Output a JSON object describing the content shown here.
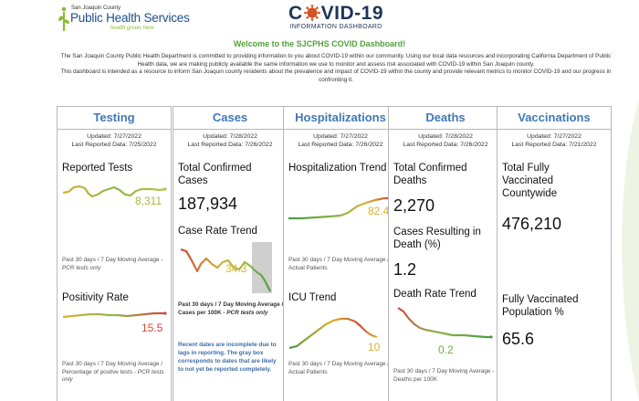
{
  "header": {
    "logo": {
      "county": "San Joaquin County",
      "name": "Public Health Services",
      "tagline": "health grows here"
    },
    "covid": {
      "title_left": "C",
      "title_mid": "VID-19",
      "subtitle": "INFORMATION DASHBOARD"
    }
  },
  "welcome": "Welcome to the SJCPHS COVID Dashboard!",
  "intro": {
    "p1": "The San Joaquin County Public Health Department is committed to providing information to you about COVID-19 within our community.  Using our local data resources and incorporating California Department of Public Health data, we are making publicly available the same information we use to monitor and assess risk associated with COVID-19 within San Joaquin county.",
    "p2": "This dashboard is intended as a resource to inform San Joaquin county residents about the prevalence and impact of COVID-19 within the county and provide relevant metrics to monitor COVID-19 and our progress in confronting it."
  },
  "panels": {
    "testing": {
      "title": "Testing",
      "updated": "Updated: 7/27/2022",
      "reported": "Last Reported Data: 7/25/2022",
      "m1_title": "Reported Tests",
      "m1_spark_value": "8,311",
      "m1_note_plain": "Past 30 days / 7 Day Moving Average - ",
      "m1_note_italic": "PCR tests only",
      "m2_title": "Positivity Rate",
      "m2_spark_value": "15.5",
      "m2_note_plain": "Past 30 days / 7 Day Moving Average / Percentage of positve tests - ",
      "m2_note_italic": "PCR tests only"
    },
    "cases": {
      "title": "Cases",
      "updated": "Updated: 7/28/2022",
      "reported": "Last Reported Data: 7/26/2022",
      "m1_title": "Total Confirmed Cases",
      "m1_value": "187,934",
      "m2_title": "Case Rate Trend",
      "m2_spark_value": "34.3",
      "m2_note_plain": "Past 30 days / 7 Day Moving Average / Cases per 100K - ",
      "m2_note_italic": "PCR tests only",
      "warning": "Recent dates are incomplete due to lags in reporting. The gray box corresponds to dates that are likely to not yet be reported completely."
    },
    "hospitalizations": {
      "title": "Hospitalizations",
      "updated": "Updated: 7/27/2022",
      "reported": "Last Reported Data: 7/26/2022",
      "m1_title": "Hospitalization Trend",
      "m1_spark_value": "82.4",
      "m1_note": "Past 30 days / 7 Day Moving Average / Actual Patients",
      "m2_title": "ICU Trend",
      "m2_spark_value": "10",
      "m2_note": "Past 30 days / 7 Day Moving Average / Actual Patients"
    },
    "deaths": {
      "title": "Deaths",
      "updated": "Updated: 7/28/2022",
      "reported": "Last Reported Data: 7/26/2022",
      "m1_title": "Total Confirmed Deaths",
      "m1_value": "2,270",
      "m2_title": "Cases Resulting in Death (%)",
      "m2_value": "1.2",
      "m3_title": "Death Rate Trend",
      "m3_spark_value": "0.2",
      "m3_note": "Past 30 days / 7 Day Moving Average - Deaths per 100K"
    },
    "vaccinations": {
      "title": "Vaccinations",
      "updated": "Updated: 7/27/2022",
      "reported": "Last Reported Data: 7/21/2022",
      "m1_title": "Total Fully Vaccinated Countywide",
      "m1_value": "476,210",
      "m2_title": "Fully Vaccinated Population %",
      "m2_value": "65.6"
    }
  },
  "colors": {
    "panel_title": "#3f79b6",
    "welcome": "#53a03a",
    "logo_blue": "#1e4f8a",
    "covid_orange": "#d35322",
    "warning": "#3c6cab",
    "trend_red": "#d2473a",
    "trend_green": "#4e9a40",
    "trend_yellow": "#d8b32c"
  },
  "icons": {
    "logo": "person-with-leaf-icon",
    "covid": "coronavirus-icon"
  }
}
